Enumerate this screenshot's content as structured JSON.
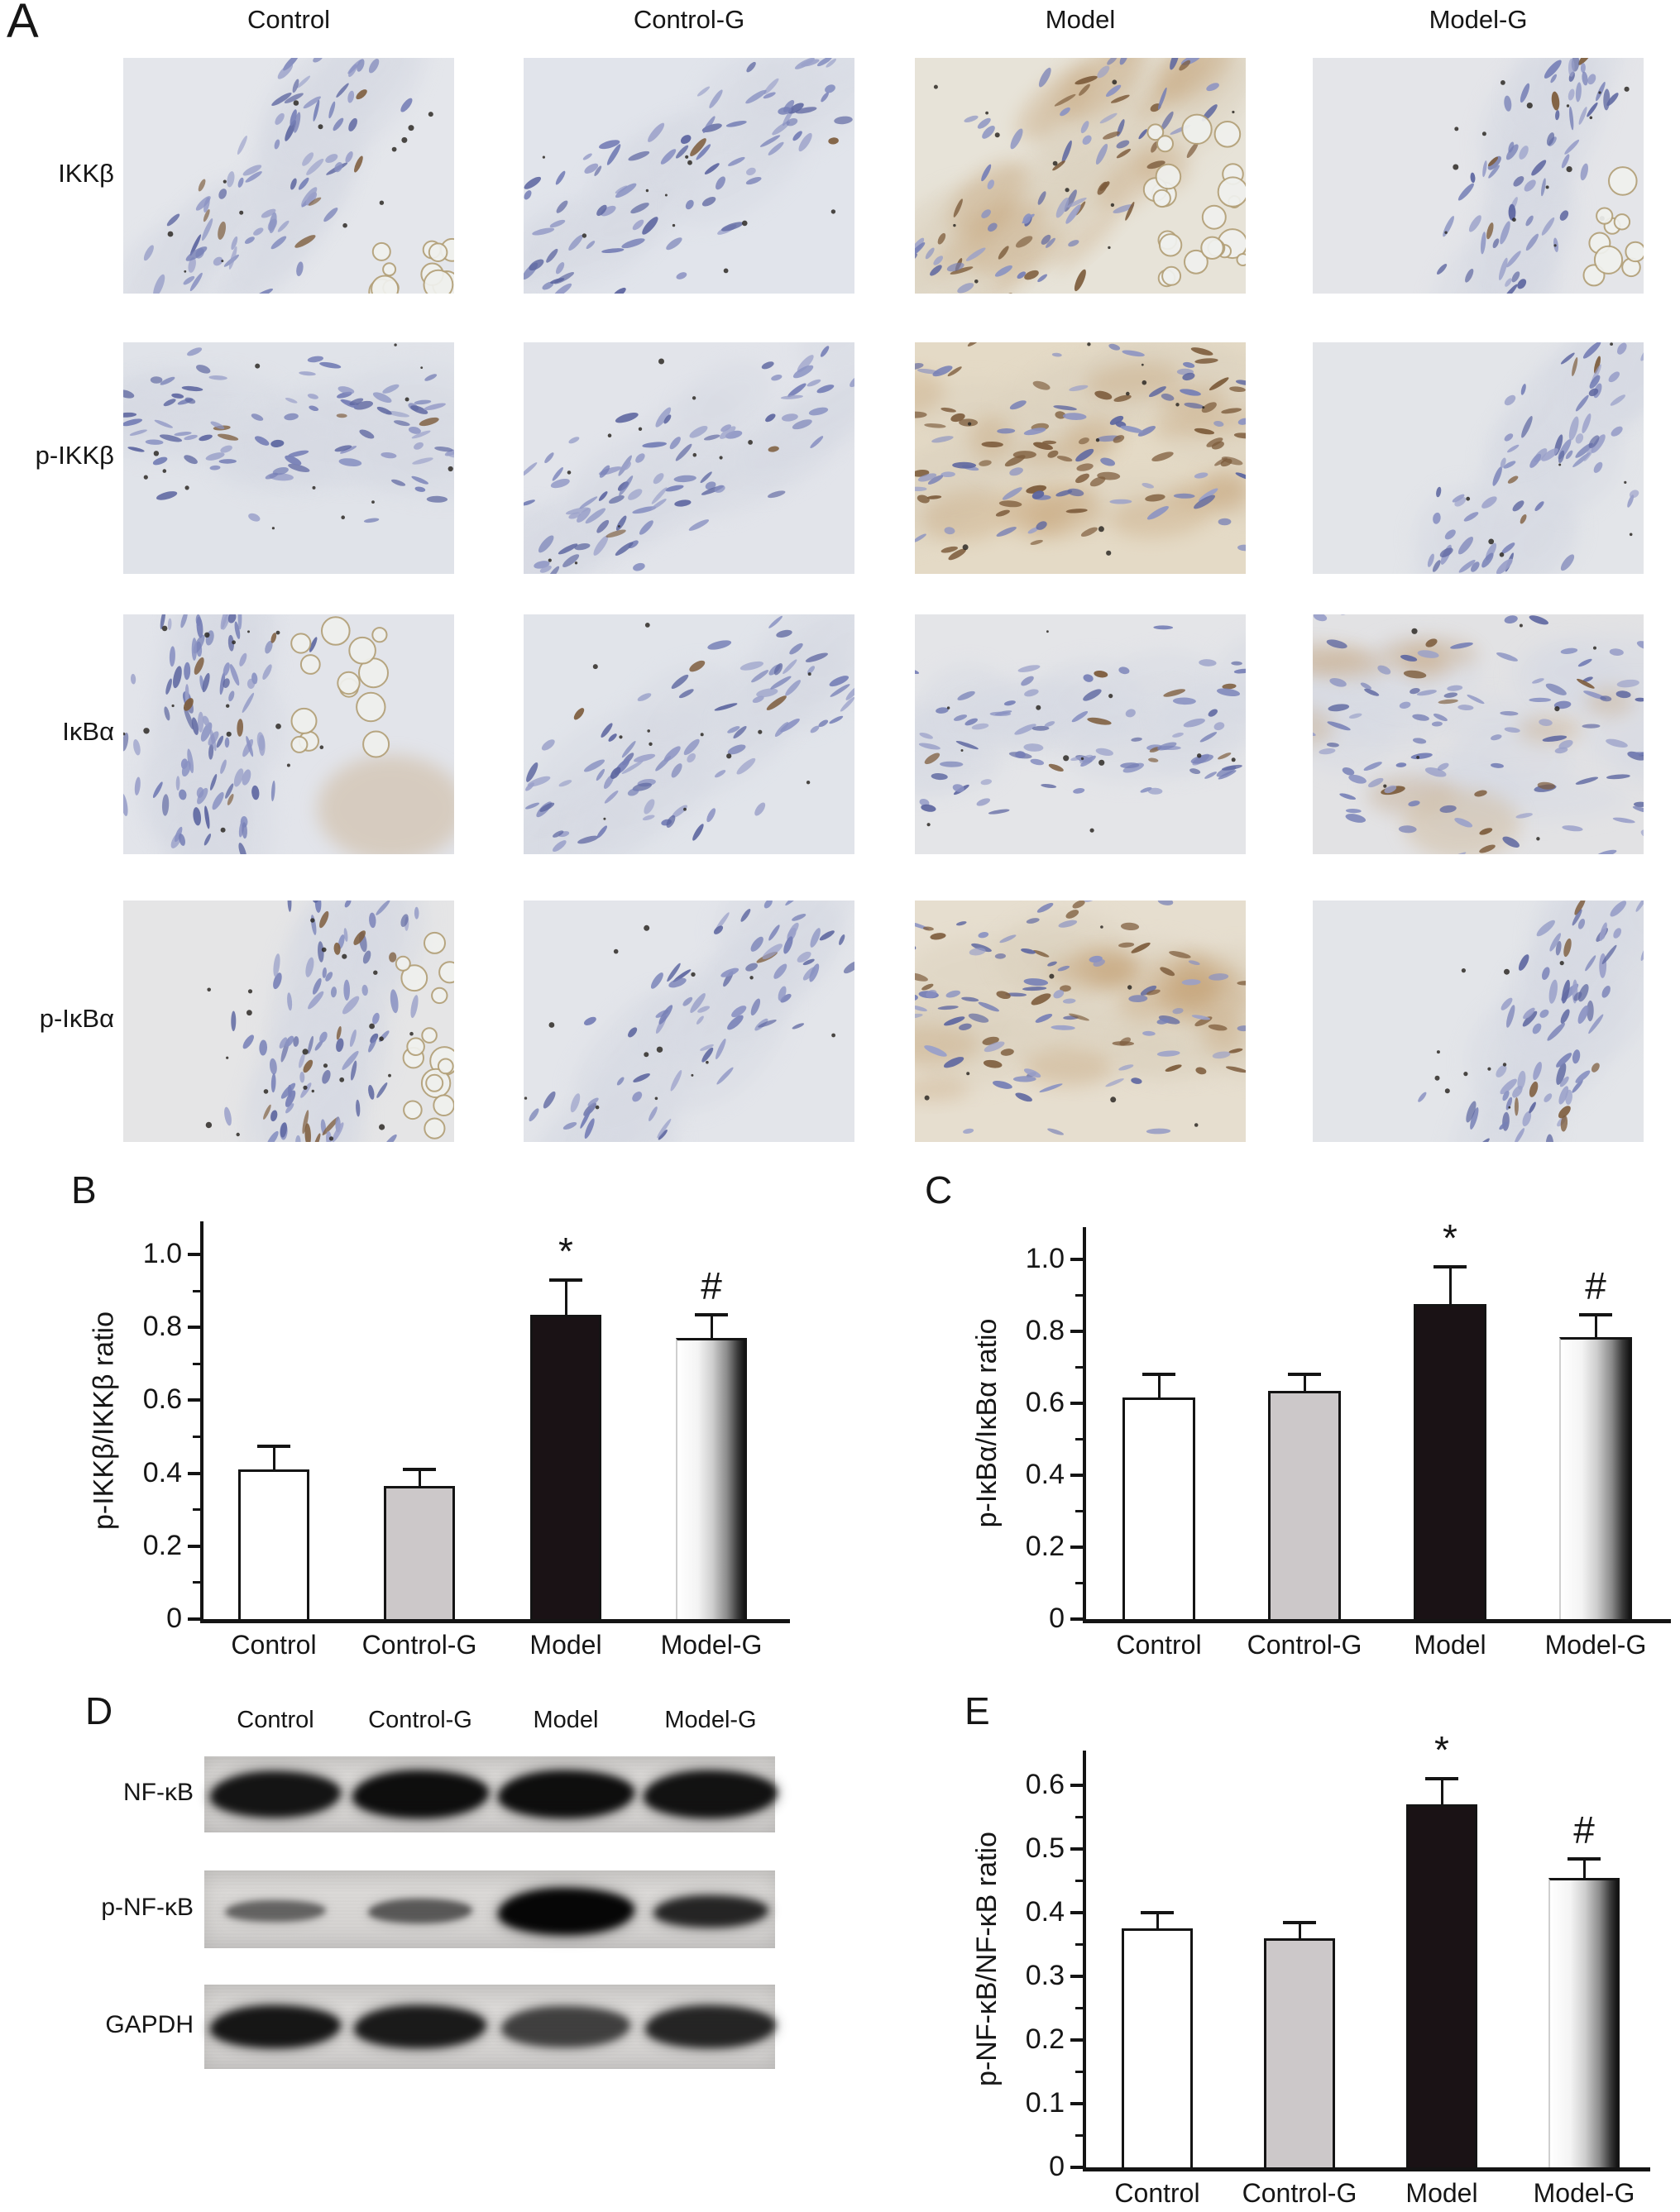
{
  "figure": {
    "panel_a": {
      "label": "A",
      "column_headers": [
        "Control",
        "Control-G",
        "Model",
        "Model-G"
      ],
      "rows": [
        {
          "label": "IKKβ"
        },
        {
          "label": "p-IKKβ"
        },
        {
          "label": "IκBα"
        },
        {
          "label": "p-IκBα"
        }
      ],
      "image_type": "immunohistochemistry micrograph"
    },
    "panel_d": {
      "label": "D",
      "lane_headers": [
        "Control",
        "Control-G",
        "Model",
        "Model-G"
      ],
      "blots": [
        {
          "label": "NF-κB",
          "band_intensities": [
            0.93,
            0.96,
            0.96,
            0.94
          ],
          "band_thickness": [
            0.85,
            1.0,
            1.0,
            0.95
          ]
        },
        {
          "label": "p-NF-κB",
          "band_intensities": [
            0.55,
            0.6,
            1.0,
            0.85
          ],
          "band_thickness": [
            0.33,
            0.4,
            1.0,
            0.6
          ]
        },
        {
          "label": "GAPDH",
          "band_intensities": [
            0.92,
            0.9,
            0.72,
            0.85
          ],
          "band_thickness": [
            0.85,
            0.9,
            0.8,
            0.85
          ]
        }
      ]
    }
  },
  "chart_data": [
    {
      "id": "B",
      "panel_label": "B",
      "type": "bar",
      "title": "",
      "categories": [
        "Control",
        "Control-G",
        "Model",
        "Model-G"
      ],
      "values": [
        0.41,
        0.365,
        0.835,
        0.77
      ],
      "errors": [
        0.065,
        0.045,
        0.095,
        0.065
      ],
      "annotations": [
        "",
        "",
        "*",
        "#"
      ],
      "xlabel": "",
      "ylabel": "p-IKKβ/IKKβ ratio",
      "ylim": [
        0,
        1.09
      ],
      "yticks": [
        0,
        0.2,
        0.4,
        0.6,
        0.8,
        1.0
      ],
      "grid": false,
      "legend": "none",
      "bar_styles": [
        "white",
        "gray",
        "black",
        "gradient"
      ]
    },
    {
      "id": "C",
      "panel_label": "C",
      "type": "bar",
      "title": "",
      "categories": [
        "Control",
        "Control-G",
        "Model",
        "Model-G"
      ],
      "values": [
        0.615,
        0.635,
        0.875,
        0.785
      ],
      "errors": [
        0.065,
        0.045,
        0.105,
        0.06
      ],
      "annotations": [
        "",
        "",
        "*",
        "#"
      ],
      "xlabel": "",
      "ylabel": "p-IκBα/IκBα ratio",
      "ylim": [
        0,
        1.09
      ],
      "yticks": [
        0,
        0.2,
        0.4,
        0.6,
        0.8,
        1.0
      ],
      "grid": false,
      "legend": "none",
      "bar_styles": [
        "white",
        "gray",
        "black",
        "gradient"
      ]
    },
    {
      "id": "E",
      "panel_label": "E",
      "type": "bar",
      "title": "",
      "categories": [
        "Control",
        "Control-G",
        "Model",
        "Model-G"
      ],
      "values": [
        0.375,
        0.36,
        0.57,
        0.455
      ],
      "errors": [
        0.025,
        0.025,
        0.04,
        0.03
      ],
      "annotations": [
        "",
        "",
        "*",
        "#"
      ],
      "xlabel": "",
      "ylabel": "p-NF-κB/NF-κB ratio",
      "ylim": [
        0,
        0.655
      ],
      "yticks": [
        0,
        0.1,
        0.2,
        0.3,
        0.4,
        0.5,
        0.6
      ],
      "grid": false,
      "legend": "none",
      "bar_styles": [
        "white",
        "gray",
        "black",
        "gradient"
      ]
    }
  ],
  "colors": {
    "bar_white": "#ffffff",
    "bar_gray": "#ccc8c9",
    "bar_black": "#1a1215",
    "axis_black": "#141414",
    "blot_background": "#d6d4d2",
    "micrograph_background": "#e3e5ea",
    "nucleus_blue": "#767fb6",
    "stain_brown": "#c39e6f"
  }
}
